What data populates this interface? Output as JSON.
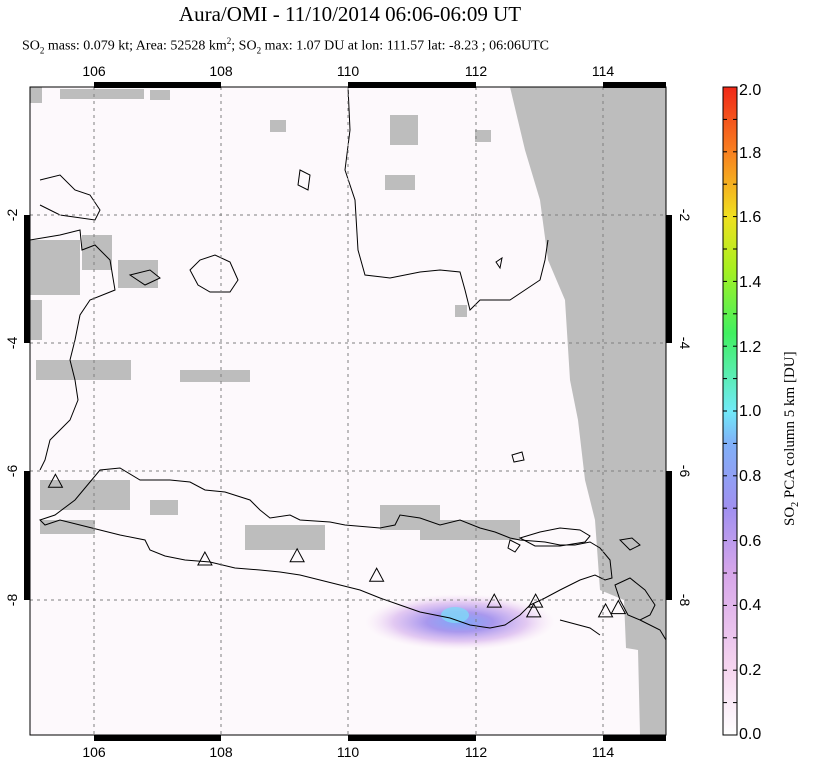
{
  "title": "Aura/OMI - 11/10/2014 06:06-06:09 UT",
  "subtitle": {
    "part1": "SO",
    "sub1": "2",
    "part2": " mass: 0.079 kt; Area: 52528 km",
    "sup1": "2",
    "part3": "; SO",
    "sub2": "2",
    "part4": " max: 1.07 DU at lon: 111.57 lat: -8.23 ; 06:06UTC"
  },
  "map": {
    "lon_range": [
      105.0,
      115.0
    ],
    "lat_range": [
      -10.0,
      0.0
    ],
    "lon_ticks": [
      "106",
      "108",
      "110",
      "112",
      "114"
    ],
    "lat_ticks": [
      "-2",
      "-4",
      "-6",
      "-8"
    ],
    "colors": {
      "land_fill": "#ffffff",
      "cloud_gap": "#bfbfbf",
      "coast": "#000000"
    },
    "volcanoes": [
      {
        "name": "volcano-1",
        "lon": 105.4,
        "lat": -6.1
      },
      {
        "name": "volcano-2",
        "lon": 107.75,
        "lat": -7.3
      },
      {
        "name": "volcano-3",
        "lon": 109.2,
        "lat": -7.25
      },
      {
        "name": "volcano-4",
        "lon": 110.45,
        "lat": -7.55
      },
      {
        "name": "volcano-5",
        "lon": 112.3,
        "lat": -7.95
      },
      {
        "name": "volcano-6",
        "lon": 112.95,
        "lat": -7.95
      },
      {
        "name": "volcano-7",
        "lon": 112.92,
        "lat": -8.1
      },
      {
        "name": "volcano-8",
        "lon": 114.05,
        "lat": -8.1
      },
      {
        "name": "volcano-9",
        "lon": 114.25,
        "lat": -8.05
      }
    ],
    "so2_max": {
      "lon": 111.57,
      "lat": -8.23,
      "value_du": 1.07
    }
  },
  "colorbar": {
    "labels": [
      "2.0",
      "1.8",
      "1.6",
      "1.4",
      "1.2",
      "1.0",
      "0.8",
      "0.6",
      "0.4",
      "0.2",
      "0.0"
    ],
    "title_part1": "SO",
    "title_sub": "2",
    "title_part2": " PCA column 5 km [DU]",
    "colors": [
      "#ffffff",
      "#f8d8f0",
      "#c898e8",
      "#8888ee",
      "#70e8f8",
      "#40f060",
      "#c8f020",
      "#f8d020",
      "#f86020",
      "#f02020"
    ]
  }
}
